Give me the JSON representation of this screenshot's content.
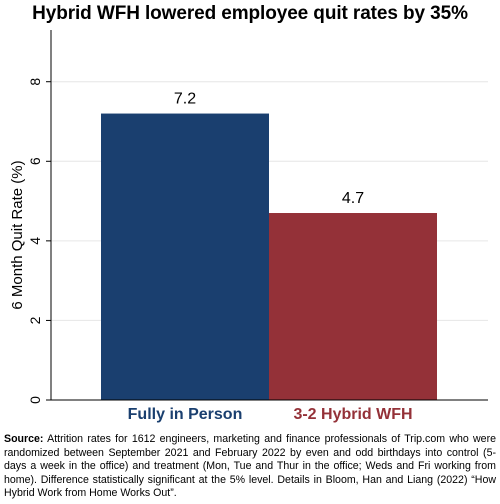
{
  "title": "Hybrid WFH lowered employee quit rates by 35%",
  "source": {
    "label": "Source:",
    "text": " Attrition rates for 1612 engineers, marketing and finance professionals of Trip.com who were randomized between September 2021 and February 2022 by even and odd birthdays into control (5-days a week in the office) and treatment (Mon, Tue and Thur in the office; Weds and Fri working from home). Difference statistically significant at the 5% level. Details in Bloom, Han and Liang (2022) “How Hybrid Work from Home Works Out”."
  },
  "chart_data": {
    "type": "bar",
    "categories": [
      "Fully in Person",
      "3-2 Hybrid WFH"
    ],
    "values": [
      7.2,
      4.7
    ],
    "data_labels": [
      "7.2",
      "4.7"
    ],
    "colors": [
      "#1a3f6f",
      "#943138"
    ],
    "title": "Hybrid WFH lowered employee quit rates by 35%",
    "xlabel": "",
    "ylabel": "6 Month Quit Rate (%)",
    "ylim": [
      0,
      9.3
    ],
    "yticks": [
      0,
      2,
      4,
      6,
      8
    ],
    "ytick_labels": [
      "0",
      "2",
      "4",
      "6",
      "8"
    ],
    "grid": true,
    "legend": "none"
  }
}
